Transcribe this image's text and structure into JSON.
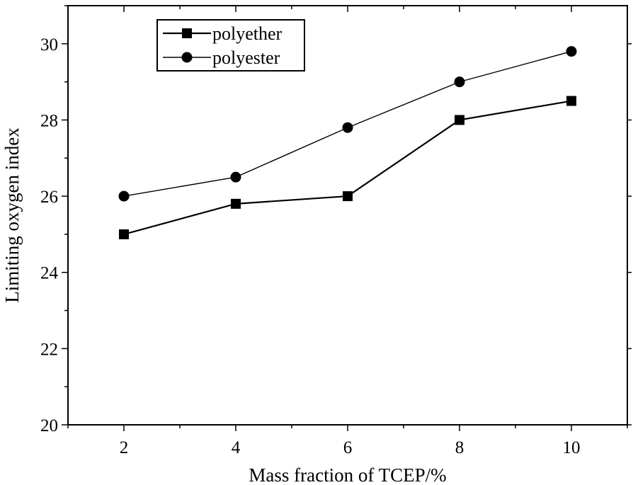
{
  "chart_data": {
    "type": "line",
    "title": "",
    "xlabel": "Mass fraction of TCEP/%",
    "ylabel": "Limiting oxygen index",
    "x": [
      2,
      4,
      6,
      8,
      10
    ],
    "xlim": [
      1,
      11
    ],
    "ylim": [
      20,
      31
    ],
    "xticks": [
      2,
      4,
      6,
      8,
      10
    ],
    "yticks": [
      20,
      22,
      24,
      26,
      28,
      30
    ],
    "grid": false,
    "legend_position": "top-left",
    "series": [
      {
        "name": "polyether",
        "marker": "square",
        "color": "#000000",
        "values": [
          25.0,
          25.8,
          26.0,
          28.0,
          28.5
        ]
      },
      {
        "name": "polyester",
        "marker": "circle",
        "color": "#000000",
        "values": [
          26.0,
          26.5,
          27.8,
          29.0,
          29.8
        ]
      }
    ]
  }
}
